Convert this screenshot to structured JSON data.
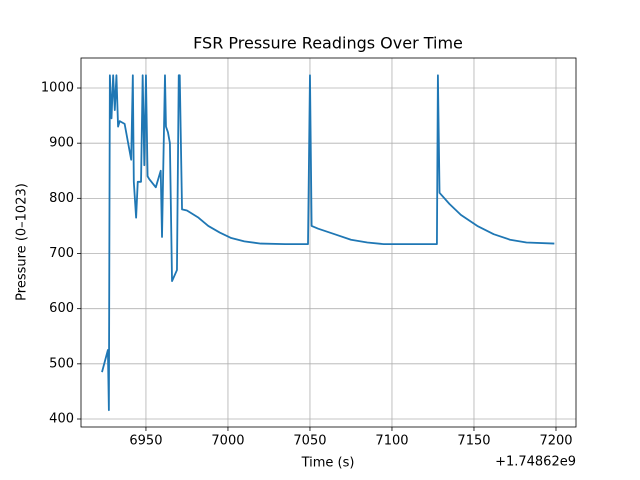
{
  "chart_data": {
    "type": "line",
    "title": "FSR Pressure Readings Over Time",
    "xlabel": "Time (s)",
    "ylabel": "Pressure (0–1023)",
    "x_offset_label": "+1.74862e9",
    "color": "#1f77b4",
    "grid": true,
    "xlim": [
      6910.4,
      7212.2
    ],
    "ylim": [
      385.5,
      1054.4
    ],
    "xticks": [
      6950,
      7000,
      7050,
      7100,
      7150,
      7200
    ],
    "yticks": [
      400,
      500,
      600,
      700,
      800,
      900,
      1000
    ],
    "x": [
      6923.2,
      6926.8,
      6927.4,
      6928,
      6929,
      6930,
      6931,
      6932,
      6933,
      6934,
      6937,
      6941,
      6942,
      6942.6,
      6944,
      6945,
      6947,
      6948,
      6949,
      6950,
      6951,
      6952,
      6956,
      6959,
      6959.8,
      6960.4,
      6961.6,
      6962.2,
      6963.4,
      6964.6,
      6965.9,
      6968.9,
      6970,
      6970.6,
      6972,
      6975,
      6982,
      6988,
      6995,
      7002,
      7010,
      7020,
      7035,
      7048.8,
      7050,
      7051,
      7055,
      7065,
      7075,
      7085,
      7095,
      7127.4,
      7128,
      7129,
      7135,
      7142,
      7152,
      7162,
      7172,
      7182,
      7199
    ],
    "values": [
      485,
      525,
      416,
      1023,
      945,
      1023,
      960,
      1023,
      930,
      940,
      935,
      870,
      1023,
      830,
      765,
      830,
      830,
      1023,
      860,
      1023,
      840,
      835,
      820,
      850,
      730,
      830,
      1023,
      930,
      920,
      900,
      650,
      670,
      1023,
      1023,
      780,
      778,
      765,
      750,
      738,
      728,
      722,
      718,
      717,
      717,
      1023,
      750,
      745,
      735,
      725,
      720,
      717,
      717,
      1023,
      810,
      790,
      770,
      750,
      735,
      725,
      720,
      718
    ]
  }
}
